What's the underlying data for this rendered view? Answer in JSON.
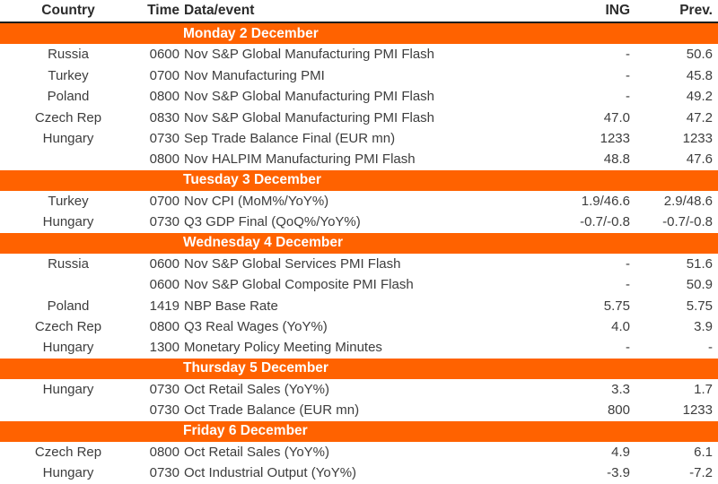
{
  "chart_data": {
    "type": "table",
    "columns": {
      "country": "Country",
      "time": "Time",
      "event": "Data/event",
      "ing": "ING",
      "prev": "Prev."
    },
    "sections": [
      {
        "day": "Monday 2 December",
        "rows": [
          {
            "country": "Russia",
            "time": "0600",
            "event": "Nov S&P Global Manufacturing PMI Flash",
            "ing": "-",
            "prev": "50.6"
          },
          {
            "country": "Turkey",
            "time": "0700",
            "event": "Nov Manufacturing PMI",
            "ing": "-",
            "prev": "45.8"
          },
          {
            "country": "Poland",
            "time": "0800",
            "event": "Nov S&P Global Manufacturing PMI Flash",
            "ing": "-",
            "prev": "49.2"
          },
          {
            "country": "Czech Rep",
            "time": "0830",
            "event": "Nov S&P Global Manufacturing PMI Flash",
            "ing": "47.0",
            "prev": "47.2"
          },
          {
            "country": "Hungary",
            "time": "0730",
            "event": "Sep Trade Balance Final (EUR mn)",
            "ing": "1233",
            "prev": "1233"
          },
          {
            "country": "",
            "time": "0800",
            "event": "Nov HALPIM Manufacturing PMI Flash",
            "ing": "48.8",
            "prev": "47.6"
          }
        ]
      },
      {
        "day": "Tuesday 3 December",
        "rows": [
          {
            "country": "Turkey",
            "time": "0700",
            "event": "Nov CPI (MoM%/YoY%)",
            "ing": "1.9/46.6",
            "prev": "2.9/48.6"
          },
          {
            "country": "Hungary",
            "time": "0730",
            "event": "Q3 GDP Final (QoQ%/YoY%)",
            "ing": "-0.7/-0.8",
            "prev": "-0.7/-0.8"
          }
        ]
      },
      {
        "day": "Wednesday 4 December",
        "rows": [
          {
            "country": "Russia",
            "time": "0600",
            "event": "Nov S&P Global Services PMI Flash",
            "ing": "-",
            "prev": "51.6"
          },
          {
            "country": "",
            "time": "0600",
            "event": "Nov S&P Global Composite PMI Flash",
            "ing": "-",
            "prev": "50.9"
          },
          {
            "country": "Poland",
            "time": "1419",
            "event": "NBP Base Rate",
            "ing": "5.75",
            "prev": "5.75"
          },
          {
            "country": "Czech Rep",
            "time": "0800",
            "event": "Q3 Real Wages (YoY%)",
            "ing": "4.0",
            "prev": "3.9"
          },
          {
            "country": "Hungary",
            "time": "1300",
            "event": "Monetary Policy Meeting Minutes",
            "ing": "-",
            "prev": "-"
          }
        ]
      },
      {
        "day": "Thursday 5 December",
        "rows": [
          {
            "country": "Hungary",
            "time": "0730",
            "event": "Oct Retail Sales (YoY%)",
            "ing": "3.3",
            "prev": "1.7"
          },
          {
            "country": "",
            "time": "0730",
            "event": "Oct Trade Balance (EUR mn)",
            "ing": "800",
            "prev": "1233"
          }
        ]
      },
      {
        "day": "Friday 6 December",
        "rows": [
          {
            "country": "Czech Rep",
            "time": "0800",
            "event": "Oct Retail Sales (YoY%)",
            "ing": "4.9",
            "prev": "6.1"
          },
          {
            "country": "Hungary",
            "time": "0730",
            "event": "Oct Industrial Output (YoY%)",
            "ing": "-3.9",
            "prev": "-7.2"
          }
        ]
      }
    ]
  },
  "colors": {
    "accent_orange": "#FF6200",
    "day_bar_text": "#FFFFFF",
    "header_rule": "#1D1D1B",
    "header_text": "#2B2B2B",
    "body_text": "#3D3D3D",
    "background": "#FFFFFF"
  }
}
